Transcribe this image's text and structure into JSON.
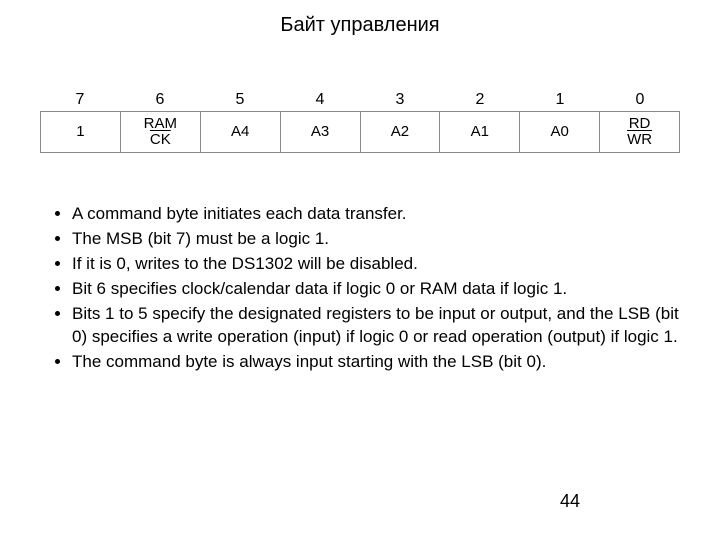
{
  "title": "Байт управления",
  "bit_numbers": [
    "7",
    "6",
    "5",
    "4",
    "3",
    "2",
    "1",
    "0"
  ],
  "cells": {
    "c7": "1",
    "c6_top": "RAM",
    "c6_bot": "CK",
    "c5": "A4",
    "c4": "A3",
    "c3": "A2",
    "c2": "A1",
    "c1": "A0",
    "c0_top": "RD",
    "c0_bot": "WR"
  },
  "bullets": [
    "A command byte initiates each data transfer.",
    "The MSB (bit 7) must be a logic 1.",
    "If it is 0, writes to the DS1302 will be disabled.",
    "Bit 6 specifies clock/calendar data if logic 0 or RAM data if logic 1.",
    "Bits 1 to 5 specify the designated registers to be input or output, and the LSB (bit 0) specifies a write operation (input) if logic 0 or read operation (output) if logic 1.",
    "The command byte is always input starting with the LSB (bit 0)."
  ],
  "page_number": "44",
  "colors": {
    "background": "#ffffff",
    "text": "#000000",
    "table_border": "#888888"
  }
}
